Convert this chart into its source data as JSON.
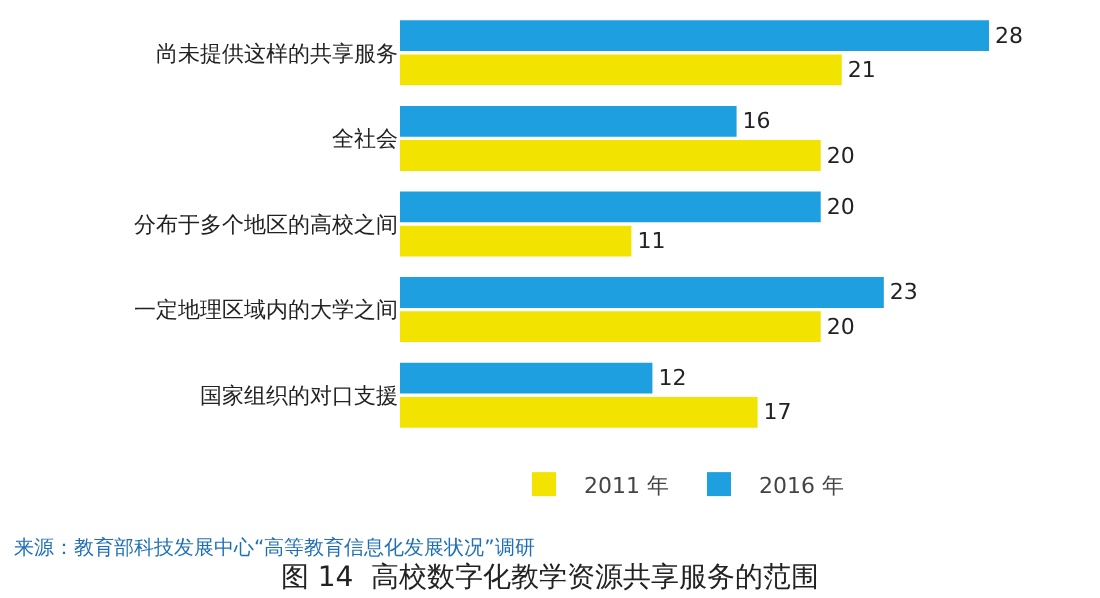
{
  "chart_data": {
    "type": "bar",
    "orientation": "horizontal",
    "title": "图 14  高校数字化教学资源共享服务的范围",
    "categories": [
      "尚未提供这样的共享服务",
      "全社会",
      "分布于多个地区的高校之间",
      "一定地理区域内的大学之间",
      "国家组织的对口支援"
    ],
    "series": [
      {
        "name": "2016 年",
        "color": "#1e9fe0",
        "values": [
          28,
          16,
          20,
          23,
          12
        ]
      },
      {
        "name": "2011 年",
        "color": "#f2e400",
        "values": [
          21,
          20,
          11,
          20,
          17
        ]
      }
    ],
    "data_labels": true,
    "legend": "bottom",
    "annotations": [
      "来源：教育部科技发展中心“高等教育信息化发展状况”调研"
    ]
  }
}
